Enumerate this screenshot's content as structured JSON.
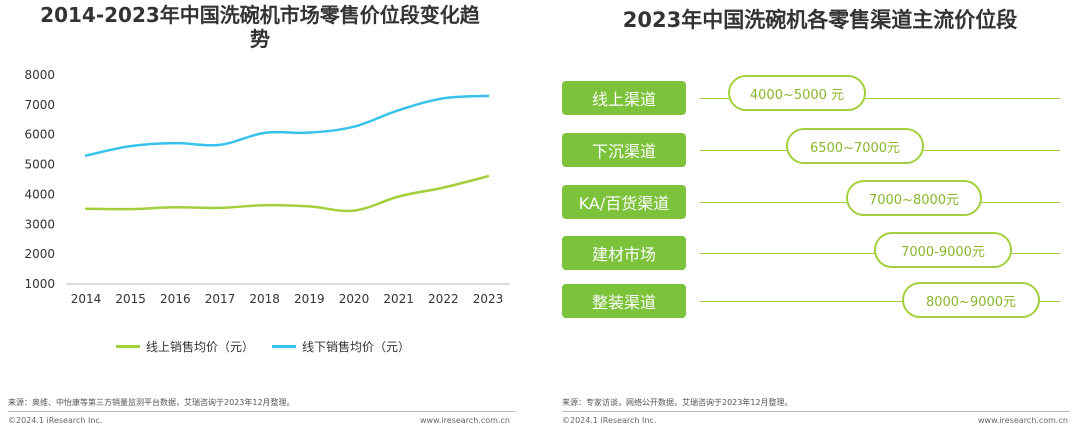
{
  "chart_data": [
    {
      "type": "line",
      "title": "2014-2023年中国洗碗机市场零售价位段变化趋势",
      "categories": [
        "2014",
        "2015",
        "2016",
        "2017",
        "2018",
        "2019",
        "2020",
        "2021",
        "2022",
        "2023"
      ],
      "yticks": [
        "8000",
        "7000",
        "6000",
        "5000",
        "4000",
        "3000",
        "2000",
        "1000"
      ],
      "ylim": [
        1000,
        8000
      ],
      "series": [
        {
          "name": "线上销售均价（元）",
          "color": "#a3cf3c",
          "values": [
            3520,
            3510,
            3570,
            3550,
            3640,
            3600,
            3460,
            3930,
            4230,
            4610
          ]
        },
        {
          "name": "线下销售均价（元）",
          "color": "#36c2ec",
          "values": [
            5300,
            5620,
            5720,
            5660,
            6060,
            6070,
            6270,
            6820,
            7220,
            7300
          ]
        }
      ],
      "grid": false,
      "legend_position": "bottom"
    },
    {
      "type": "table",
      "title": "2023年中国洗碗机各零售渠道主流价位段",
      "rows": [
        {
          "channel": "线上渠道",
          "range": "4000~5000  元"
        },
        {
          "channel": "下沉渠道",
          "range": "6500~7000元"
        },
        {
          "channel": "KA/百货渠道",
          "range": "7000~8000元"
        },
        {
          "channel": "建材市场",
          "range": "7000-9000元"
        },
        {
          "channel": "整装渠道",
          "range": "8000~9000元"
        }
      ]
    }
  ],
  "left_source": "来源：奥维、中怡康等第三方销量监测平台数据，艾瑞咨询于2023年12月整理。",
  "right_source": "来源：专家访谈，网络公开数据，艾瑞咨询于2023年12月整理。",
  "footer": {
    "copyright": "©2024.1 iResearch Inc.",
    "website": "www.iresearch.com.cn"
  }
}
